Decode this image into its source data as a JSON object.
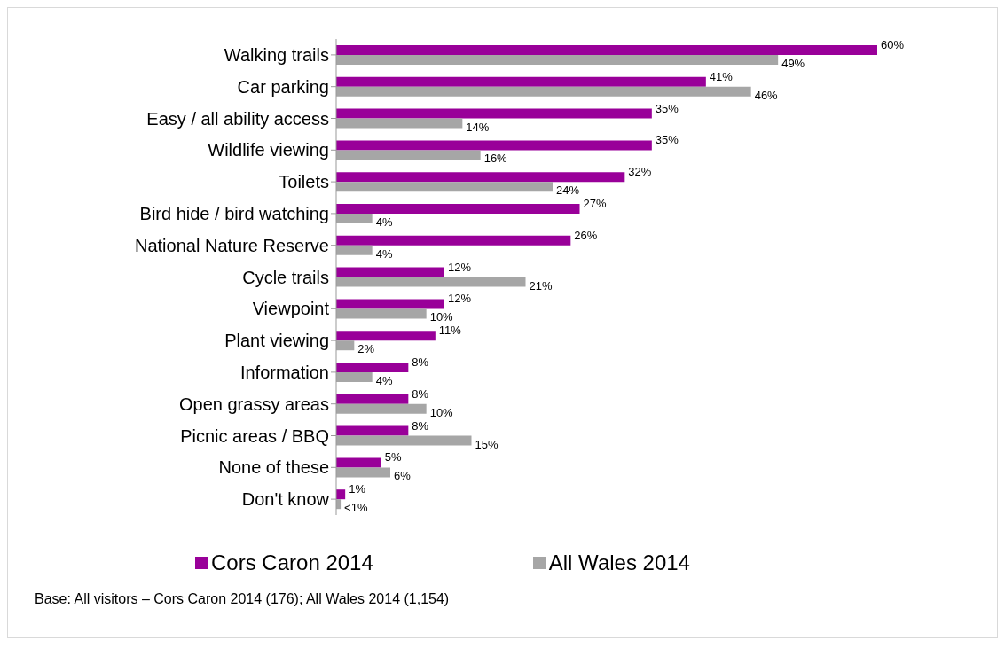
{
  "chart_data": {
    "type": "bar",
    "orientation": "horizontal",
    "categories": [
      "Walking trails",
      "Car parking",
      "Easy / all ability access",
      "Wildlife viewing",
      "Toilets",
      "Bird hide / bird watching",
      "National Nature Reserve",
      "Cycle trails",
      "Viewpoint",
      "Plant viewing",
      "Information ",
      "Open grassy areas",
      "Picnic areas / BBQ",
      "None of these",
      "Don't know"
    ],
    "series": [
      {
        "name": "Cors Caron 2014",
        "color": "#990099",
        "values": [
          60,
          41,
          35,
          35,
          32,
          27,
          26,
          12,
          12,
          11,
          8,
          8,
          8,
          5,
          1
        ],
        "value_labels": [
          "60%",
          "41%",
          "35%",
          "35%",
          "32%",
          "27%",
          "26%",
          "12%",
          "12%",
          "11%",
          "8%",
          "8%",
          "8%",
          "5%",
          "1%"
        ]
      },
      {
        "name": "All Wales 2014",
        "color": "#a6a6a6",
        "values": [
          49,
          46,
          14,
          16,
          24,
          4,
          4,
          21,
          10,
          2,
          4,
          10,
          15,
          6,
          0.5
        ],
        "value_labels": [
          "49%",
          "46%",
          "14%",
          "16%",
          "24%",
          "4%",
          "4%",
          "21%",
          "10%",
          "2%",
          "4%",
          "10%",
          "15%",
          "6%",
          "<1%"
        ]
      }
    ],
    "xlim": [
      0,
      60
    ],
    "tick_labels": "y",
    "grid": false,
    "legend": "bottom",
    "annotations": [
      "Base: All visitors – Cors Caron 2014 (176); All Wales 2014 (1,154)"
    ]
  }
}
